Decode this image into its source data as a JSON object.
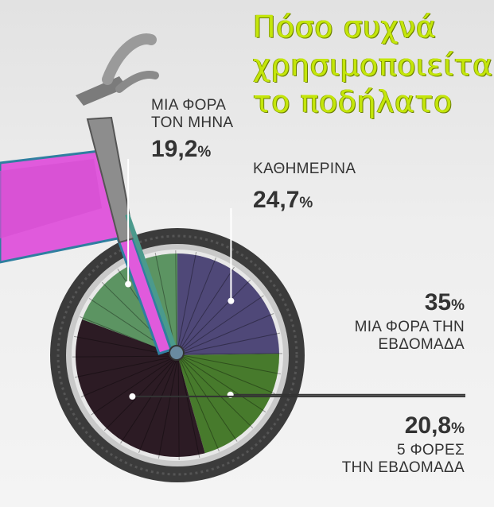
{
  "title_lines": [
    "Πόσο συχνά",
    "χρησιμοποιείται",
    "το ποδήλατο"
  ],
  "chart_data": {
    "type": "pie",
    "title": "Πόσο συχνά χρησιμοποιείται το ποδήλατο",
    "slices": [
      {
        "label_lines": [
          "ΚΑΘΗΜΕΡΙΝΑ"
        ],
        "value": 24.7,
        "value_text": "24,7",
        "unit": "%",
        "color": "#4f4878"
      },
      {
        "label_lines": [
          "5 ΦΟΡΕΣ",
          "ΤΗΝ ΕΒΔΟΜΑΔΑ"
        ],
        "value": 20.8,
        "value_text": "20,8",
        "unit": "%",
        "color": "#477a2c"
      },
      {
        "label_lines": [
          "ΜΙΑ ΦΟΡΑ ΤΗΝ",
          "ΕΒΔΟΜΑΔΑ"
        ],
        "value": 35,
        "value_text": "35",
        "unit": "%",
        "color": "#2c1b24"
      },
      {
        "label_lines": [
          "ΜΙΑ ΦΟΡΑ",
          "ΤΟΝ ΜΗΝΑ"
        ],
        "value": 19.2,
        "value_text": "19,2",
        "unit": "%",
        "color": "#5c9462"
      }
    ]
  },
  "colors": {
    "title": "#c4e60a",
    "frame": "#e05adc",
    "frame_dark": "#2f7fa0",
    "tire": "#3a3a3a",
    "rim": "#bfbfbf",
    "leader": "#ffffff"
  }
}
